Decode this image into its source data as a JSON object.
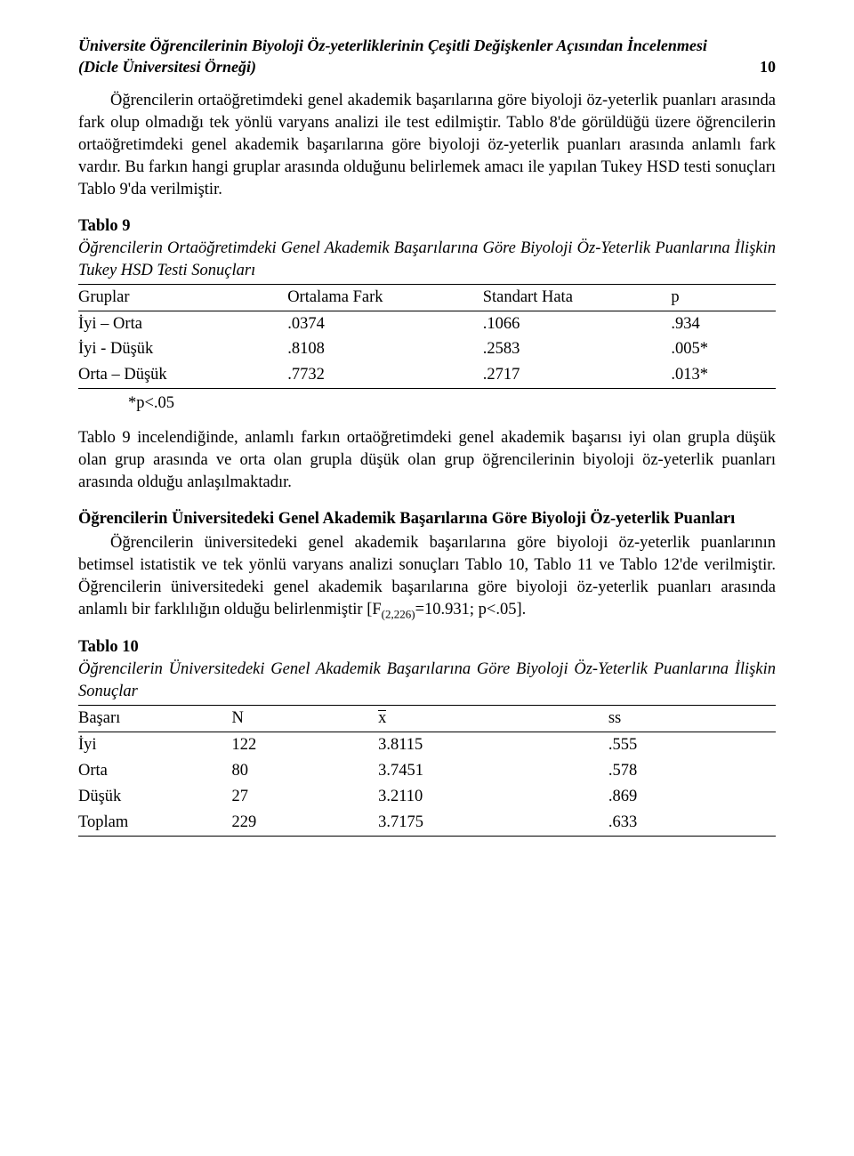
{
  "header": {
    "title_line1": "Üniversite Öğrencilerinin Biyoloji Öz-yeterliklerinin Çeşitli Değişkenler Açısından İncelenmesi",
    "title_line2": "(Dicle Üniversitesi Örneği)",
    "page_number": "10"
  },
  "para1": "Öğrencilerin ortaöğretimdeki genel akademik başarılarına göre biyoloji öz-yeterlik puanları arasında fark olup olmadığı tek yönlü varyans analizi ile test edilmiştir. Tablo 8'de görüldüğü üzere öğrencilerin ortaöğretimdeki genel akademik başarılarına göre biyoloji öz-yeterlik puanları arasında anlamlı fark vardır. Bu farkın hangi gruplar arasında olduğunu belirlemek amacı ile yapılan Tukey HSD testi sonuçları Tablo 9'da verilmiştir.",
  "table9": {
    "label": "Tablo 9",
    "caption": "Öğrencilerin Ortaöğretimdeki Genel Akademik Başarılarına Göre Biyoloji Öz-Yeterlik Puanlarına İlişkin Tukey HSD Testi Sonuçları",
    "columns": [
      "Gruplar",
      "Ortalama Fark",
      "Standart Hata",
      "p"
    ],
    "rows": [
      [
        "İyi – Orta",
        ".0374",
        ".1066",
        ".934"
      ],
      [
        "İyi - Düşük",
        ".8108",
        ".2583",
        ".005*"
      ],
      [
        "Orta – Düşük",
        ".7732",
        ".2717",
        ".013*"
      ]
    ],
    "footnote": "*p<.05",
    "col_widths": [
      "30%",
      "28%",
      "27%",
      "15%"
    ],
    "border_color": "#000000"
  },
  "para2": "Tablo 9 incelendiğinde, anlamlı farkın ortaöğretimdeki genel akademik başarısı iyi olan grupla düşük olan grup arasında ve orta olan grupla düşük olan grup öğrencilerinin biyoloji öz-yeterlik puanları arasında olduğu anlaşılmaktadır.",
  "section2": {
    "title": "Öğrencilerin Üniversitedeki Genel Akademik Başarılarına Göre Biyoloji Öz-yeterlik Puanları",
    "body_a": "Öğrencilerin üniversitedeki genel akademik başarılarına göre biyoloji öz-yeterlik puanlarının betimsel istatistik ve tek yönlü varyans analizi sonuçları Tablo 10, Tablo 11 ve Tablo 12'de verilmiştir. Öğrencilerin üniversitedeki genel akademik başarılarına göre biyoloji öz-yeterlik puanları arasında anlamlı bir farklılığın olduğu belirlenmiştir [F",
    "stat_sub": "(2,226)",
    "body_b": "=10.931; p<.05]."
  },
  "table10": {
    "label": "Tablo 10",
    "caption": "Öğrencilerin Üniversitedeki Genel Akademik Başarılarına Göre Biyoloji Öz-Yeterlik Puanlarına İlişkin Sonuçlar",
    "columns": [
      "Başarı",
      "N",
      "x",
      "ss"
    ],
    "rows": [
      [
        "İyi",
        "122",
        "3.8115",
        ".555"
      ],
      [
        "Orta",
        "80",
        "3.7451",
        ".578"
      ],
      [
        "Düşük",
        "27",
        "3.2110",
        ".869"
      ],
      [
        "Toplam",
        "229",
        "3.7175",
        ".633"
      ]
    ],
    "col_widths": [
      "22%",
      "21%",
      "33%",
      "24%"
    ],
    "border_color": "#000000"
  }
}
